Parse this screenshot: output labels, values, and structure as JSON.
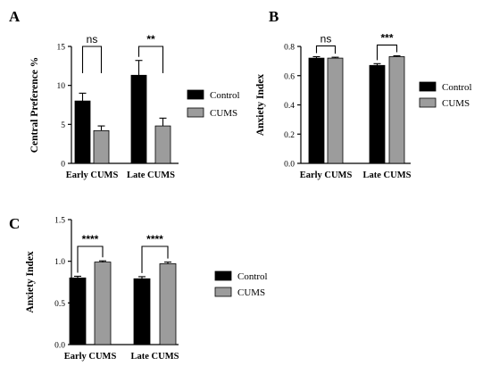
{
  "colors": {
    "control": "#000000",
    "cums": "#9c9c9c",
    "edge": "#000000"
  },
  "chart_data": [
    {
      "type": "bar",
      "panel": "A",
      "ylabel": "Central Preference %",
      "categories": [
        "Early CUMS",
        "Late CUMS"
      ],
      "ylim": [
        0,
        15
      ],
      "yticks": [
        0,
        5,
        10,
        15
      ],
      "ytick_labels": [
        "0",
        "5",
        "10",
        "15"
      ],
      "series": [
        {
          "name": "Control",
          "values": [
            8.0,
            11.3
          ],
          "errors": [
            1.0,
            1.9
          ]
        },
        {
          "name": "CUMS",
          "values": [
            4.2,
            4.8
          ],
          "errors": [
            0.6,
            1.0
          ]
        }
      ],
      "annotations": [
        "ns",
        "**"
      ],
      "legend": "right"
    },
    {
      "type": "bar",
      "panel": "B",
      "ylabel": "Anxiety Index",
      "categories": [
        "Early CUMS",
        "Late CUMS"
      ],
      "ylim": [
        0,
        0.8
      ],
      "yticks": [
        0,
        0.2,
        0.4,
        0.6,
        0.8
      ],
      "ytick_labels": [
        "0.0",
        "0.2",
        "0.4",
        "0.6",
        "0.8"
      ],
      "series": [
        {
          "name": "Control",
          "values": [
            0.72,
            0.67
          ],
          "errors": [
            0.01,
            0.012
          ]
        },
        {
          "name": "CUMS",
          "values": [
            0.72,
            0.73
          ],
          "errors": [
            0.006,
            0.006
          ]
        }
      ],
      "annotations": [
        "ns",
        "***"
      ],
      "legend": "right"
    },
    {
      "type": "bar",
      "panel": "C",
      "ylabel": "Anxiety Index",
      "categories": [
        "Early CUMS",
        "Late CUMS"
      ],
      "ylim": [
        0,
        1.5
      ],
      "yticks": [
        0,
        0.5,
        1.0,
        1.5
      ],
      "ytick_labels": [
        "0.0",
        "0.5",
        "1.0",
        "1.5"
      ],
      "series": [
        {
          "name": "Control",
          "values": [
            0.8,
            0.79
          ],
          "errors": [
            0.02,
            0.025
          ]
        },
        {
          "name": "CUMS",
          "values": [
            0.99,
            0.97
          ],
          "errors": [
            0.015,
            0.02
          ]
        }
      ],
      "annotations": [
        "****",
        "****"
      ],
      "legend": "right"
    }
  ]
}
